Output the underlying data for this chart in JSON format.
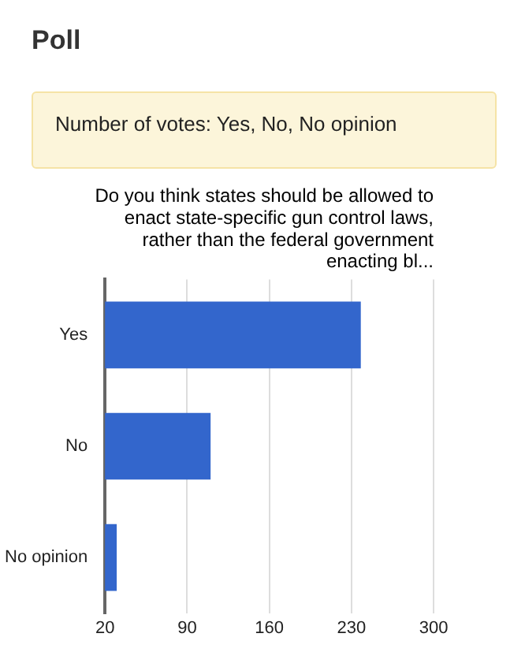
{
  "chart_data": {
    "type": "bar",
    "orientation": "horizontal",
    "title": "Do you think states should be allowed to enact state-specific gun control laws, rather than the federal government enacting bl...",
    "annotations": [
      "Poll",
      "Number of votes: Yes, No, No opinion"
    ],
    "categories": [
      "Yes",
      "No",
      "No opinion"
    ],
    "values": [
      238,
      110,
      30
    ],
    "color": "#3366cc",
    "xlim": [
      20,
      300
    ],
    "xticks": [
      20,
      90,
      160,
      230,
      300
    ],
    "grid": "x",
    "legend": false
  }
}
